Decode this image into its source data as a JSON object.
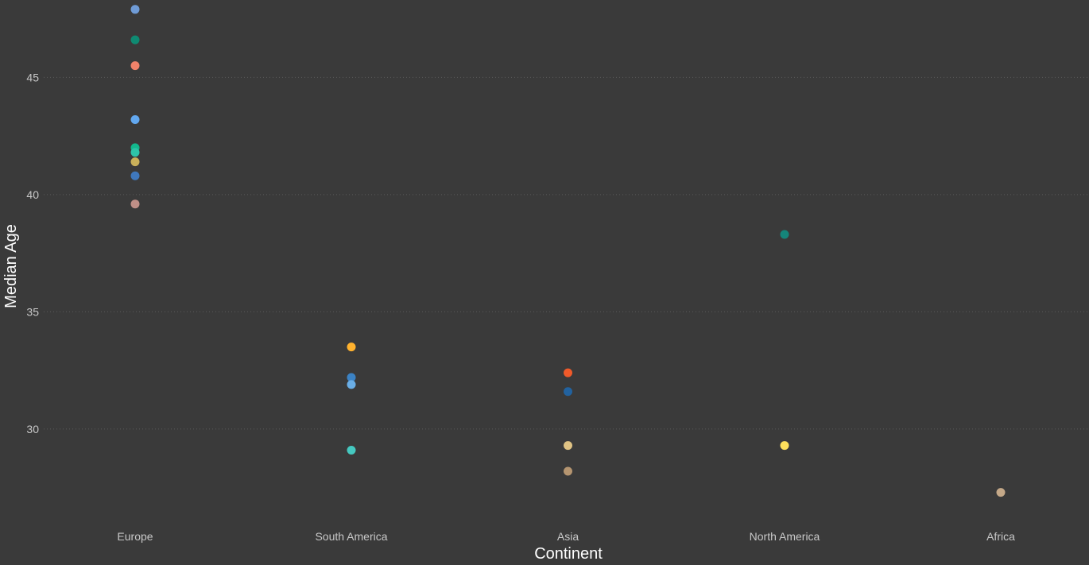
{
  "chart_data": {
    "type": "scatter",
    "xlabel": "Continent",
    "ylabel": "Median Age",
    "categories": [
      "Europe",
      "South America",
      "Asia",
      "North America",
      "Africa"
    ],
    "ylim": [
      26.1,
      48.3
    ],
    "yticks": [
      30,
      35,
      40,
      45
    ],
    "grid": true,
    "points": [
      {
        "category": "Europe",
        "value": 47.9,
        "color": "#6f9bd6"
      },
      {
        "category": "Europe",
        "value": 46.6,
        "color": "#0f8a72"
      },
      {
        "category": "Europe",
        "value": 45.5,
        "color": "#f0826a"
      },
      {
        "category": "Europe",
        "value": 43.2,
        "color": "#62a8f0"
      },
      {
        "category": "Europe",
        "value": 42.0,
        "color": "#13b88d"
      },
      {
        "category": "Europe",
        "value": 41.8,
        "color": "#2ec4a8"
      },
      {
        "category": "Europe",
        "value": 41.4,
        "color": "#c9b05a"
      },
      {
        "category": "Europe",
        "value": 40.8,
        "color": "#3f78bc"
      },
      {
        "category": "Europe",
        "value": 39.6,
        "color": "#bf8f87"
      },
      {
        "category": "South America",
        "value": 33.5,
        "color": "#ffb22e"
      },
      {
        "category": "South America",
        "value": 32.2,
        "color": "#3b82c4"
      },
      {
        "category": "South America",
        "value": 31.9,
        "color": "#6aaee6"
      },
      {
        "category": "South America",
        "value": 29.1,
        "color": "#45c8c0"
      },
      {
        "category": "Asia",
        "value": 32.4,
        "color": "#f05a2a"
      },
      {
        "category": "Asia",
        "value": 31.6,
        "color": "#22629f"
      },
      {
        "category": "Asia",
        "value": 29.3,
        "color": "#e0c384"
      },
      {
        "category": "Asia",
        "value": 28.2,
        "color": "#b59570"
      },
      {
        "category": "North America",
        "value": 38.3,
        "color": "#15857a"
      },
      {
        "category": "North America",
        "value": 29.3,
        "color": "#ffe15c"
      },
      {
        "category": "Africa",
        "value": 27.3,
        "color": "#c4a888"
      }
    ]
  }
}
